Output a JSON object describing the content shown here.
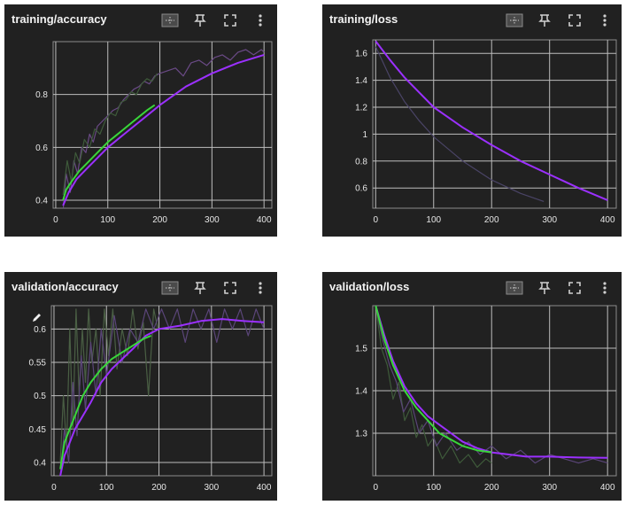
{
  "charts": [
    {
      "title": "training/accuracy",
      "chart_data": {
        "type": "line",
        "xlim": [
          -5,
          415
        ],
        "ylim": [
          0.37,
          1.0
        ],
        "x_ticks": [
          0,
          100,
          200,
          300,
          400
        ],
        "y_ticks": [
          0.4,
          0.6,
          0.8
        ],
        "y_tick_labels": [
          "0.4",
          "0.6",
          "0.8"
        ],
        "grid": true,
        "series": [
          {
            "color": "#9b30ff",
            "raw": false,
            "x": [
              14,
              25,
              40,
              60,
              80,
              100,
              125,
              150,
              175,
              200,
              250,
              300,
              350,
              400
            ],
            "y": [
              0.38,
              0.43,
              0.48,
              0.52,
              0.56,
              0.6,
              0.64,
              0.68,
              0.72,
              0.76,
              0.83,
              0.88,
              0.92,
              0.95
            ]
          },
          {
            "color": "#39d63a",
            "raw": false,
            "x": [
              14,
              20,
              30,
              45,
              60,
              80,
              100,
              125,
              150,
              175,
              190
            ],
            "y": [
              0.4,
              0.44,
              0.47,
              0.51,
              0.54,
              0.58,
              0.62,
              0.66,
              0.7,
              0.74,
              0.76
            ]
          },
          {
            "color": "#6a4a86",
            "raw": true,
            "x": [
              14,
              20,
              28,
              35,
              42,
              50,
              58,
              65,
              72,
              80,
              90,
              100,
              110,
              120,
              130,
              140,
              150,
              160,
              170,
              180,
              190,
              200,
              215,
              230,
              245,
              260,
              275,
              290,
              305,
              320,
              335,
              350,
              365,
              380,
              395,
              400
            ],
            "y": [
              0.36,
              0.5,
              0.43,
              0.55,
              0.5,
              0.6,
              0.58,
              0.65,
              0.62,
              0.68,
              0.7,
              0.72,
              0.74,
              0.75,
              0.78,
              0.8,
              0.82,
              0.83,
              0.85,
              0.84,
              0.87,
              0.88,
              0.89,
              0.9,
              0.87,
              0.92,
              0.93,
              0.91,
              0.94,
              0.95,
              0.93,
              0.96,
              0.97,
              0.95,
              0.97,
              0.96
            ]
          },
          {
            "color": "#3e5a3a",
            "raw": true,
            "x": [
              14,
              22,
              30,
              38,
              46,
              55,
              65,
              75,
              85,
              95,
              105,
              115,
              125,
              135,
              145,
              155,
              165,
              175,
              185,
              195
            ],
            "y": [
              0.42,
              0.55,
              0.47,
              0.58,
              0.54,
              0.63,
              0.6,
              0.67,
              0.65,
              0.7,
              0.73,
              0.72,
              0.77,
              0.78,
              0.81,
              0.8,
              0.84,
              0.86,
              0.85,
              0.88
            ]
          }
        ]
      }
    },
    {
      "title": "training/loss",
      "chart_data": {
        "type": "line",
        "xlim": [
          -5,
          415
        ],
        "ylim": [
          0.45,
          1.7
        ],
        "x_ticks": [
          0,
          100,
          200,
          300,
          400
        ],
        "y_ticks": [
          0.6,
          0.8,
          1.0,
          1.2,
          1.4,
          1.6
        ],
        "y_tick_labels": [
          "0.6",
          "0.8",
          "1",
          "1.2",
          "1.4",
          "1.6"
        ],
        "grid": true,
        "series": [
          {
            "color": "#9b30ff",
            "raw": false,
            "x": [
              0,
              25,
              50,
              75,
              100,
              150,
              200,
              250,
              300,
              350,
              400
            ],
            "y": [
              1.69,
              1.55,
              1.42,
              1.31,
              1.2,
              1.05,
              0.92,
              0.8,
              0.7,
              0.6,
              0.51
            ]
          },
          {
            "color": "#4a4466",
            "raw": true,
            "x": [
              0,
              25,
              50,
              75,
              100,
              150,
              200,
              250,
              290
            ],
            "y": [
              1.65,
              1.42,
              1.24,
              1.1,
              0.98,
              0.8,
              0.66,
              0.56,
              0.5
            ]
          }
        ]
      }
    },
    {
      "title": "validation/accuracy",
      "chart_data": {
        "type": "line",
        "xlim": [
          -5,
          415
        ],
        "ylim": [
          0.38,
          0.635
        ],
        "x_ticks": [
          0,
          100,
          200,
          300,
          400
        ],
        "y_ticks": [
          0.4,
          0.45,
          0.5,
          0.55,
          0.6
        ],
        "y_tick_labels": [
          "0.4",
          "0.45",
          "0.5",
          "0.55",
          "0.6"
        ],
        "grid": true,
        "series": [
          {
            "color": "#9b30ff",
            "raw": false,
            "x": [
              12,
              20,
              30,
              40,
              55,
              70,
              90,
              110,
              130,
              150,
              175,
              200,
              240,
              280,
              320,
              360,
              400
            ],
            "y": [
              0.38,
              0.41,
              0.43,
              0.45,
              0.47,
              0.49,
              0.52,
              0.54,
              0.555,
              0.57,
              0.59,
              0.6,
              0.605,
              0.612,
              0.615,
              0.612,
              0.61
            ]
          },
          {
            "color": "#39d63a",
            "raw": false,
            "x": [
              12,
              20,
              30,
              40,
              55,
              70,
              90,
              110,
              130,
              150,
              170,
              185
            ],
            "y": [
              0.39,
              0.43,
              0.45,
              0.47,
              0.5,
              0.52,
              0.54,
              0.555,
              0.565,
              0.575,
              0.585,
              0.59
            ]
          },
          {
            "color": "#4a5f44",
            "raw": true,
            "x": [
              12,
              18,
              24,
              30,
              36,
              42,
              48,
              54,
              60,
              66,
              72,
              80,
              88,
              96,
              104,
              112,
              120,
              130,
              140,
              150,
              160,
              170,
              180,
              190,
              198
            ],
            "y": [
              0.4,
              0.5,
              0.42,
              0.6,
              0.45,
              0.63,
              0.5,
              0.6,
              0.52,
              0.63,
              0.55,
              0.6,
              0.5,
              0.63,
              0.56,
              0.63,
              0.54,
              0.6,
              0.56,
              0.63,
              0.57,
              0.61,
              0.5,
              0.63,
              0.6
            ]
          },
          {
            "color": "#5a4578",
            "raw": true,
            "x": [
              12,
              20,
              28,
              36,
              44,
              52,
              60,
              70,
              80,
              90,
              100,
              115,
              130,
              145,
              160,
              175,
              190,
              205,
              220,
              235,
              250,
              265,
              280,
              295,
              310,
              325,
              340,
              355,
              370,
              385,
              400
            ],
            "y": [
              0.38,
              0.45,
              0.4,
              0.52,
              0.44,
              0.56,
              0.48,
              0.58,
              0.5,
              0.6,
              0.53,
              0.62,
              0.55,
              0.6,
              0.58,
              0.63,
              0.6,
              0.63,
              0.6,
              0.63,
              0.58,
              0.63,
              0.6,
              0.63,
              0.58,
              0.63,
              0.6,
              0.63,
              0.59,
              0.63,
              0.6
            ]
          }
        ]
      }
    },
    {
      "title": "validation/loss",
      "chart_data": {
        "type": "line",
        "xlim": [
          -5,
          415
        ],
        "ylim": [
          1.2,
          1.6
        ],
        "x_ticks": [
          0,
          100,
          200,
          300,
          400
        ],
        "y_ticks": [
          1.3,
          1.4,
          1.5
        ],
        "y_tick_labels": [
          "1.3",
          "1.4",
          "1.5"
        ],
        "grid": true,
        "series": [
          {
            "color": "#9b30ff",
            "raw": false,
            "x": [
              0,
              15,
              30,
              50,
              70,
              90,
              110,
              130,
              150,
              175,
              200,
              230,
              260,
              300,
              350,
              400
            ],
            "y": [
              1.6,
              1.53,
              1.47,
              1.41,
              1.37,
              1.34,
              1.32,
              1.3,
              1.28,
              1.265,
              1.255,
              1.25,
              1.245,
              1.245,
              1.243,
              1.242
            ]
          },
          {
            "color": "#39d63a",
            "raw": false,
            "x": [
              0,
              15,
              30,
              50,
              70,
              90,
              110,
              130,
              150,
              175,
              200
            ],
            "y": [
              1.6,
              1.52,
              1.46,
              1.4,
              1.36,
              1.33,
              1.3,
              1.285,
              1.27,
              1.26,
              1.255
            ]
          },
          {
            "color": "#3e5a3a",
            "raw": true,
            "x": [
              0,
              10,
              20,
              30,
              40,
              50,
              60,
              70,
              80,
              90,
              100,
              115,
              130,
              145,
              160,
              175,
              190,
              200
            ],
            "y": [
              1.6,
              1.5,
              1.46,
              1.38,
              1.42,
              1.33,
              1.36,
              1.29,
              1.32,
              1.27,
              1.29,
              1.24,
              1.27,
              1.23,
              1.25,
              1.22,
              1.24,
              1.23
            ]
          },
          {
            "color": "#5a4578",
            "raw": true,
            "x": [
              0,
              12,
              24,
              36,
              48,
              60,
              75,
              90,
              105,
              120,
              140,
              160,
              180,
              200,
              225,
              250,
              275,
              300,
              325,
              350,
              375,
              400
            ],
            "y": [
              1.6,
              1.52,
              1.46,
              1.42,
              1.35,
              1.38,
              1.3,
              1.33,
              1.27,
              1.3,
              1.26,
              1.28,
              1.25,
              1.27,
              1.24,
              1.26,
              1.23,
              1.25,
              1.24,
              1.23,
              1.24,
              1.23
            ]
          }
        ]
      }
    }
  ]
}
